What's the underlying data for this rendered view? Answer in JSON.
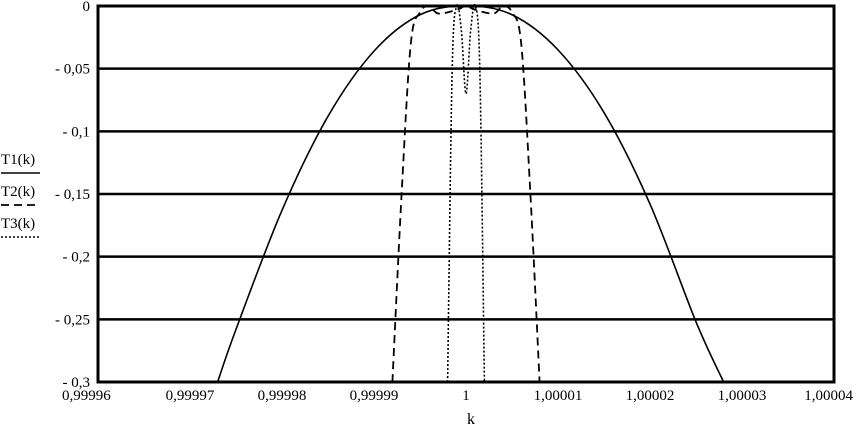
{
  "chart_data": {
    "type": "line",
    "xlabel": "k",
    "ylabel": "",
    "xlim": [
      0.99996,
      1.00004
    ],
    "ylim": [
      -0.3,
      0
    ],
    "grid": "horizontal",
    "legend_position": "left",
    "x_ticks": [
      0.99996,
      0.99997,
      0.99998,
      0.99999,
      1,
      1.00001,
      1.00002,
      1.00003,
      1.00004
    ],
    "x_tick_labels": [
      "0,99996",
      "0,99997",
      "0,99998",
      "0,99999",
      "1",
      "1,00001",
      "1,00002",
      "1,00003",
      "1,00004"
    ],
    "y_ticks": [
      0,
      -0.05,
      -0.1,
      -0.15,
      -0.2,
      -0.25,
      -0.3
    ],
    "y_tick_labels": [
      "0",
      "- 0,05",
      "- 0,1",
      "- 0,15",
      "- 0,2",
      "- 0,25",
      "- 0,3"
    ],
    "series": [
      {
        "name": "T1(k)",
        "style": "solid",
        "x": [
          0.999973,
          0.999975,
          0.99998,
          0.999985,
          0.99999,
          0.999995,
          1.0,
          1.000005,
          1.00001,
          1.000015,
          1.00002,
          1.000025,
          1.000028
        ],
        "y": [
          -0.3,
          -0.258,
          -0.163,
          -0.088,
          -0.036,
          -0.007,
          0.0,
          -0.007,
          -0.035,
          -0.085,
          -0.158,
          -0.252,
          -0.3
        ]
      },
      {
        "name": "T2(k)",
        "style": "dashed",
        "x": [
          0.999992,
          0.999993,
          0.999994,
          0.999995,
          0.999996,
          0.999997,
          0.999999,
          1.0,
          1.000001,
          1.000003,
          1.000004,
          1.000005,
          1.000006,
          1.000007,
          1.000008
        ],
        "y": [
          -0.3,
          -0.15,
          -0.03,
          -0.005,
          0.0,
          -0.006,
          -0.003,
          0.0,
          -0.003,
          -0.006,
          0.0,
          -0.005,
          -0.03,
          -0.15,
          -0.3
        ]
      },
      {
        "name": "T3(k)",
        "style": "dotted",
        "x": [
          0.999998,
          0.9999985,
          0.999999,
          0.9999995,
          1.0,
          1.0000005,
          1.000001,
          1.0000015,
          1.000002
        ],
        "y": [
          -0.3,
          -0.05,
          0.0,
          -0.02,
          -0.07,
          -0.02,
          0.0,
          -0.05,
          -0.3
        ]
      }
    ]
  }
}
